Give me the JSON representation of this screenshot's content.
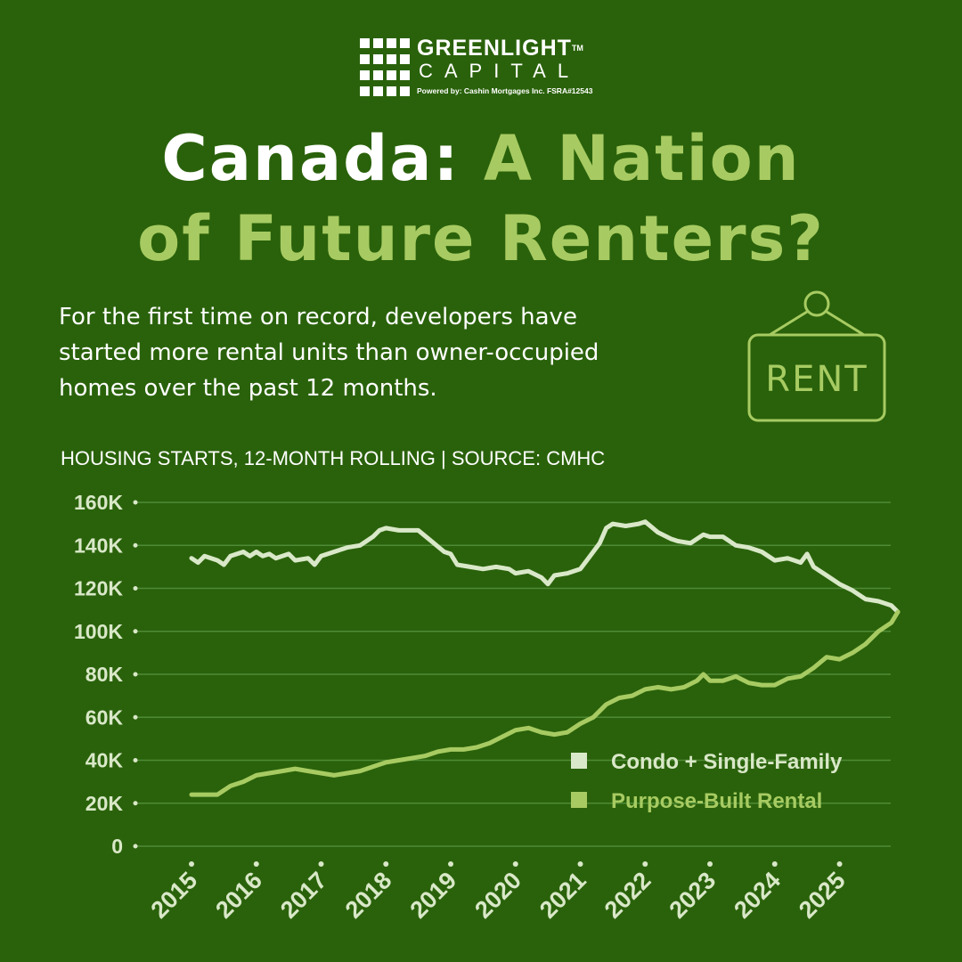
{
  "brand": {
    "name": "GREENLIGHT",
    "trademark": "TM",
    "sub": "CAPITAL",
    "powered_by": "Powered by:  Cashin Mortgages Inc.  FSRA#12543"
  },
  "headline": {
    "line1_white": "Canada: ",
    "line1_lime": "A Nation",
    "line2_lime": "of Future Renters?"
  },
  "intro": {
    "line1": "For the first time on record, developers have",
    "line2": "started more rental units than owner-occupied",
    "line3": "homes over the past 12 months."
  },
  "sign": {
    "text": "RENT",
    "icon": "rent-sign-icon"
  },
  "colors": {
    "background": "#2a620b",
    "lime": "#a7cb62",
    "condo_line": "#d9e8c8",
    "rental_line": "#a7cb62",
    "grid": "#4f8a36"
  },
  "chart_data": {
    "type": "line",
    "caption": "HOUSING STARTS, 12-MONTH ROLLING | SOURCE: CMHC",
    "ylim": [
      0,
      160000
    ],
    "yticks": [
      0,
      20000,
      40000,
      60000,
      80000,
      100000,
      120000,
      140000,
      160000
    ],
    "ytick_labels": [
      "0",
      "20K",
      "40K",
      "60K",
      "80K",
      "100K",
      "120K",
      "140K",
      "160K"
    ],
    "xlim": [
      2015,
      2025.9
    ],
    "xticks": [
      2015,
      2016,
      2017,
      2018,
      2019,
      2020,
      2021,
      2022,
      2023,
      2024,
      2025
    ],
    "xtick_labels": [
      "2015",
      "2016",
      "2017",
      "2018",
      "2019",
      "2020",
      "2021",
      "2022",
      "2023",
      "2024",
      "2025"
    ],
    "grid": true,
    "legend_position": "bottom-right",
    "series": [
      {
        "name": "Condo + Single-Family",
        "color": "#d9e8c8",
        "x": [
          2015.0,
          2015.1,
          2015.2,
          2015.4,
          2015.5,
          2015.6,
          2015.8,
          2015.9,
          2016.0,
          2016.1,
          2016.2,
          2016.3,
          2016.5,
          2016.6,
          2016.8,
          2016.9,
          2017.0,
          2017.2,
          2017.4,
          2017.6,
          2017.8,
          2017.9,
          2018.0,
          2018.2,
          2018.5,
          2018.7,
          2018.9,
          2019.0,
          2019.1,
          2019.3,
          2019.5,
          2019.7,
          2019.9,
          2020.0,
          2020.2,
          2020.4,
          2020.5,
          2020.6,
          2020.8,
          2021.0,
          2021.1,
          2021.3,
          2021.4,
          2021.5,
          2021.7,
          2021.9,
          2022.0,
          2022.2,
          2022.4,
          2022.5,
          2022.7,
          2022.9,
          2023.0,
          2023.2,
          2023.4,
          2023.6,
          2023.8,
          2024.0,
          2024.2,
          2024.4,
          2024.5,
          2024.6,
          2024.8,
          2025.0,
          2025.2,
          2025.4,
          2025.6,
          2025.8,
          2025.9
        ],
        "y": [
          134000,
          132000,
          135000,
          133000,
          131000,
          135000,
          137000,
          135000,
          137000,
          135000,
          136000,
          134000,
          136000,
          133000,
          134000,
          131000,
          135000,
          137000,
          139000,
          140000,
          144000,
          147000,
          148000,
          147000,
          147000,
          142000,
          137000,
          136000,
          131000,
          130000,
          129000,
          130000,
          129000,
          127000,
          128000,
          125000,
          122000,
          126000,
          127000,
          129000,
          133000,
          141000,
          148000,
          150000,
          149000,
          150000,
          151000,
          146000,
          143000,
          142000,
          141000,
          145000,
          144000,
          144000,
          140000,
          139000,
          137000,
          133000,
          134000,
          132000,
          136000,
          130000,
          126000,
          122000,
          119000,
          115000,
          114000,
          112000,
          109000
        ]
      },
      {
        "name": "Purpose-Built Rental",
        "color": "#a7cb62",
        "x": [
          2015.0,
          2015.3,
          2015.4,
          2015.6,
          2015.8,
          2016.0,
          2016.2,
          2016.4,
          2016.6,
          2016.8,
          2017.0,
          2017.2,
          2017.4,
          2017.6,
          2017.8,
          2018.0,
          2018.2,
          2018.4,
          2018.6,
          2018.8,
          2019.0,
          2019.2,
          2019.4,
          2019.6,
          2019.8,
          2020.0,
          2020.2,
          2020.4,
          2020.6,
          2020.8,
          2021.0,
          2021.2,
          2021.4,
          2021.6,
          2021.8,
          2022.0,
          2022.2,
          2022.4,
          2022.6,
          2022.8,
          2022.9,
          2023.0,
          2023.2,
          2023.4,
          2023.6,
          2023.8,
          2024.0,
          2024.2,
          2024.4,
          2024.6,
          2024.8,
          2025.0,
          2025.2,
          2025.4,
          2025.6,
          2025.8,
          2025.9
        ],
        "y": [
          24000,
          24000,
          24000,
          28000,
          30000,
          33000,
          34000,
          35000,
          36000,
          35000,
          34000,
          33000,
          34000,
          35000,
          37000,
          39000,
          40000,
          41000,
          42000,
          44000,
          45000,
          45000,
          46000,
          48000,
          51000,
          54000,
          55000,
          53000,
          52000,
          53000,
          57000,
          60000,
          66000,
          69000,
          70000,
          73000,
          74000,
          73000,
          74000,
          77000,
          80000,
          77000,
          77000,
          79000,
          76000,
          75000,
          75000,
          78000,
          79000,
          83000,
          88000,
          87000,
          90000,
          94000,
          100000,
          104000,
          109000
        ]
      }
    ]
  }
}
